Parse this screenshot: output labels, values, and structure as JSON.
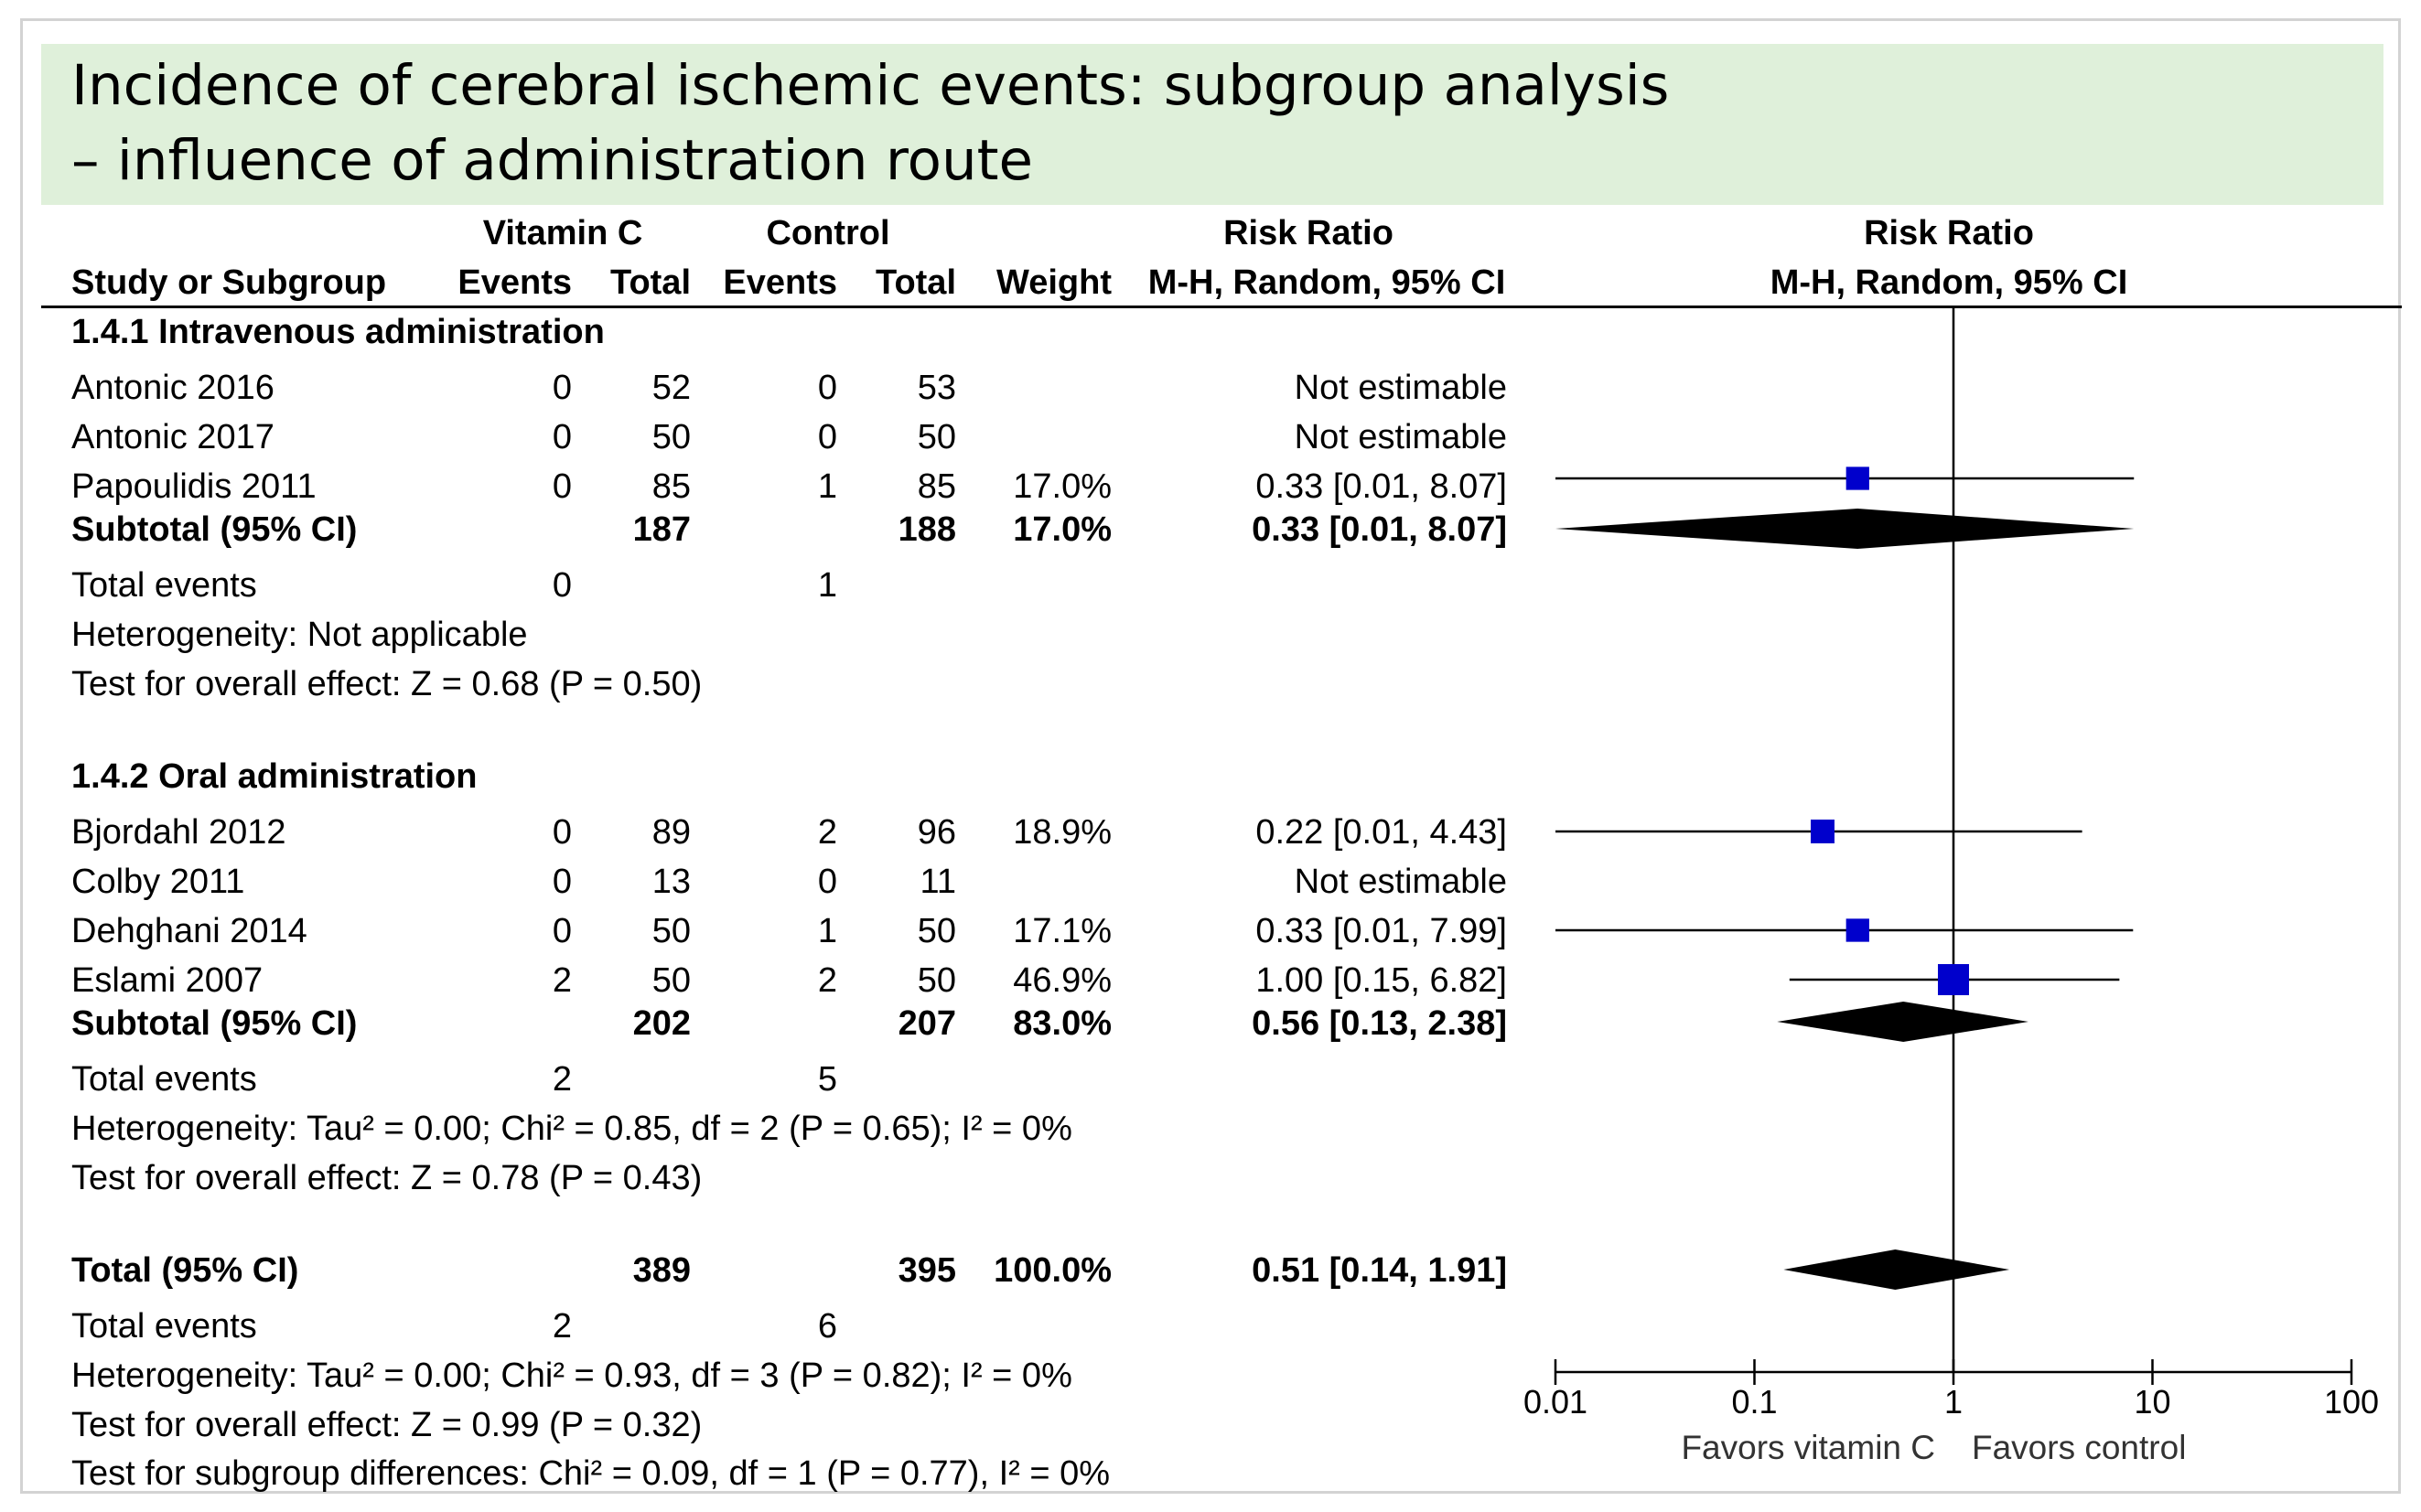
{
  "title": {
    "line1": "Incidence of cerebral ischemic events: subgroup analysis",
    "line2": "– influence of administration route"
  },
  "header": {
    "group1": "Vitamin C",
    "group2": "Control",
    "rr_label": "Risk Ratio",
    "study_col": "Study or Subgroup",
    "events1": "Events",
    "total1": "Total",
    "events2": "Events",
    "total2": "Total",
    "weight": "Weight",
    "method": "M-H, Random, 95% CI",
    "plot_label": "Risk Ratio",
    "plot_method": "M-H, Random, 95% CI"
  },
  "subgroups": [
    {
      "title": "1.4.1 Intravenous administration",
      "studies": [
        {
          "name": "Antonic 2016",
          "e1": "0",
          "t1": "52",
          "e2": "0",
          "t2": "53",
          "weight": "",
          "ci": "Not estimable"
        },
        {
          "name": "Antonic 2017",
          "e1": "0",
          "t1": "50",
          "e2": "0",
          "t2": "50",
          "weight": "",
          "ci": "Not estimable"
        },
        {
          "name": "Papoulidis 2011",
          "e1": "0",
          "t1": "85",
          "e2": "1",
          "t2": "85",
          "weight": "17.0%",
          "ci": "0.33 [0.01, 8.07]"
        }
      ],
      "subtotal": {
        "label": "Subtotal (95% CI)",
        "t1": "187",
        "t2": "188",
        "weight": "17.0%",
        "ci": "0.33 [0.01, 8.07]"
      },
      "total_events": {
        "label": "Total events",
        "e1": "0",
        "e2": "1"
      },
      "heterogeneity": "Heterogeneity: Not applicable",
      "overall": "Test for overall effect: Z = 0.68 (P = 0.50)"
    },
    {
      "title": "1.4.2 Oral administration",
      "studies": [
        {
          "name": "Bjordahl 2012",
          "e1": "0",
          "t1": "89",
          "e2": "2",
          "t2": "96",
          "weight": "18.9%",
          "ci": "0.22 [0.01, 4.43]"
        },
        {
          "name": "Colby 2011",
          "e1": "0",
          "t1": "13",
          "e2": "0",
          "t2": "11",
          "weight": "",
          "ci": "Not estimable"
        },
        {
          "name": "Dehghani 2014",
          "e1": "0",
          "t1": "50",
          "e2": "1",
          "t2": "50",
          "weight": "17.1%",
          "ci": "0.33 [0.01, 7.99]"
        },
        {
          "name": "Eslami 2007",
          "e1": "2",
          "t1": "50",
          "e2": "2",
          "t2": "50",
          "weight": "46.9%",
          "ci": "1.00 [0.15, 6.82]"
        }
      ],
      "subtotal": {
        "label": "Subtotal (95% CI)",
        "t1": "202",
        "t2": "207",
        "weight": "83.0%",
        "ci": "0.56 [0.13, 2.38]"
      },
      "total_events": {
        "label": "Total events",
        "e1": "2",
        "e2": "5"
      },
      "heterogeneity": "Heterogeneity: Tau² = 0.00; Chi² = 0.85, df = 2 (P = 0.65); I² = 0%",
      "overall": "Test for overall effect: Z = 0.78 (P = 0.43)"
    }
  ],
  "total": {
    "label": "Total (95% CI)",
    "t1": "389",
    "t2": "395",
    "weight": "100.0%",
    "ci": "0.51 [0.14, 1.91]",
    "events_label": "Total events",
    "e1": "2",
    "e2": "6",
    "heterogeneity": "Heterogeneity: Tau² = 0.00; Chi² = 0.93, df = 3 (P = 0.82); I² = 0%",
    "overall": "Test for overall effect: Z = 0.99 (P = 0.32)",
    "subgroup_diff": "Test for subgroup differences: Chi² = 0.09, df = 1 (P = 0.77), I² = 0%"
  },
  "chart_data": {
    "type": "forest",
    "measure": "Risk Ratio (M-H, Random, 95% CI)",
    "x_scale": "log",
    "xlim": [
      0.01,
      100
    ],
    "ticks": [
      {
        "value": 0.01,
        "label": "0.01"
      },
      {
        "value": 0.1,
        "label": "0.1"
      },
      {
        "value": 1,
        "label": "1"
      },
      {
        "value": 10,
        "label": "10"
      },
      {
        "value": 100,
        "label": "100"
      }
    ],
    "left_label": "Favors vitamin C",
    "right_label": "Favors control",
    "studies": [
      {
        "name": "Papoulidis 2011",
        "rr": 0.33,
        "lo": 0.01,
        "hi": 8.07,
        "weight": 17.0
      },
      {
        "name": "Bjordahl 2012",
        "rr": 0.22,
        "lo": 0.01,
        "hi": 4.43,
        "weight": 18.9
      },
      {
        "name": "Dehghani 2014",
        "rr": 0.33,
        "lo": 0.01,
        "hi": 7.99,
        "weight": 17.1
      },
      {
        "name": "Eslami 2007",
        "rr": 1.0,
        "lo": 0.15,
        "hi": 6.82,
        "weight": 46.9
      }
    ],
    "summaries": [
      {
        "name": "Subtotal 1.4.1",
        "rr": 0.33,
        "lo": 0.01,
        "hi": 8.07
      },
      {
        "name": "Subtotal 1.4.2",
        "rr": 0.56,
        "lo": 0.13,
        "hi": 2.38
      },
      {
        "name": "Total",
        "rr": 0.51,
        "lo": 0.14,
        "hi": 1.91
      }
    ],
    "colors": {
      "study_marker": "#0000cc",
      "summary_diamond": "#000000"
    }
  }
}
